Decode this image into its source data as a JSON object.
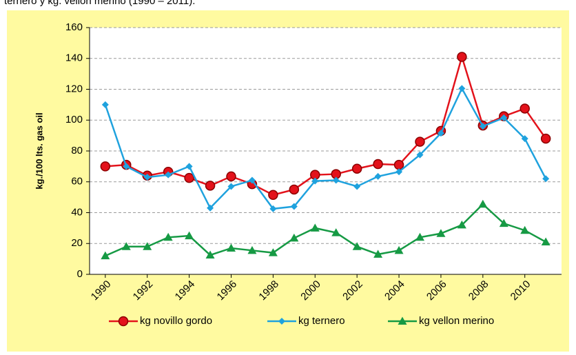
{
  "caption": "ternero y kg. vellon merino (1990 – 2011).",
  "chart_data": {
    "type": "line",
    "y_label": "kg./100 lts. gas oil",
    "x": [
      1990,
      1991,
      1992,
      1993,
      1994,
      1995,
      1996,
      1997,
      1998,
      1999,
      2000,
      2001,
      2002,
      2003,
      2004,
      2005,
      2006,
      2007,
      2008,
      2009,
      2010,
      2011
    ],
    "xlim": [
      1989.25,
      2011.75
    ],
    "xticks": [
      1990,
      1992,
      1994,
      1996,
      1998,
      2000,
      2002,
      2004,
      2006,
      2008,
      2010
    ],
    "ylim": [
      0,
      160
    ],
    "yticks": [
      0,
      20,
      40,
      60,
      80,
      100,
      120,
      140,
      160
    ],
    "grid": true,
    "legend": "bottom",
    "series": [
      {
        "name": "kg novillo gordo",
        "color": "#e3121b",
        "marker": "circle",
        "values": [
          70,
          71,
          64,
          66.5,
          62.5,
          57.5,
          63.5,
          58.5,
          51.5,
          55,
          64.5,
          65,
          68.5,
          71.5,
          71,
          86,
          93,
          141,
          96.5,
          102.5,
          107.5,
          88
        ]
      },
      {
        "name": "kg ternero",
        "color": "#1fa2de",
        "marker": "diamond",
        "values": [
          110,
          70,
          63,
          64.5,
          70,
          43,
          57,
          61,
          42.5,
          44,
          60.5,
          61,
          57,
          63.5,
          66.5,
          77.5,
          91.5,
          120.5,
          96,
          101.5,
          88,
          62
        ]
      },
      {
        "name": "kg vellon  merino",
        "color": "#169a44",
        "marker": "triangle",
        "values": [
          12,
          18,
          18,
          24,
          25,
          12.5,
          17,
          15.5,
          14,
          23.5,
          30,
          27,
          18,
          13,
          15.5,
          24,
          26.5,
          32,
          45.5,
          33,
          28.5,
          21
        ]
      }
    ]
  }
}
